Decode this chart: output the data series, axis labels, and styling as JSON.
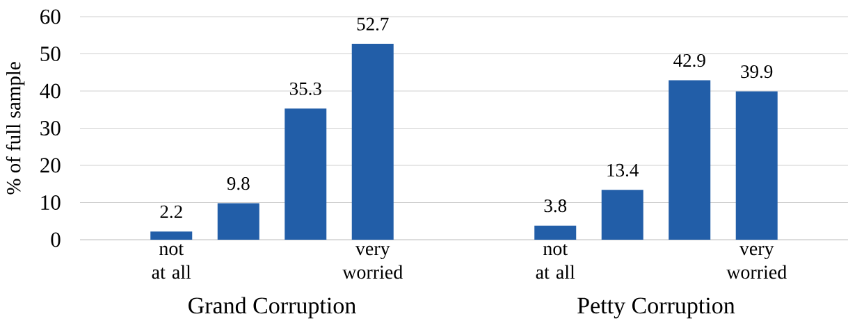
{
  "chart_data": {
    "type": "bar",
    "ylabel": "% of full sample",
    "categories": [
      "Grand Corruption",
      "Petty Corruption"
    ],
    "series": [
      {
        "name": "not at all",
        "color": "#225ea8",
        "values": [
          2.2,
          3.8
        ]
      },
      {
        "color": "#225ea8",
        "values": [
          9.8,
          13.4
        ]
      },
      {
        "color": "#225ea8",
        "values": [
          35.3,
          42.9
        ]
      },
      {
        "name": "very worried",
        "color": "#225ea8",
        "values": [
          52.7,
          39.9
        ]
      }
    ],
    "ylim": [
      0,
      60
    ],
    "yticks": [
      0,
      10,
      20,
      30,
      40,
      50,
      60
    ],
    "grid": "y",
    "data_labels": true
  }
}
